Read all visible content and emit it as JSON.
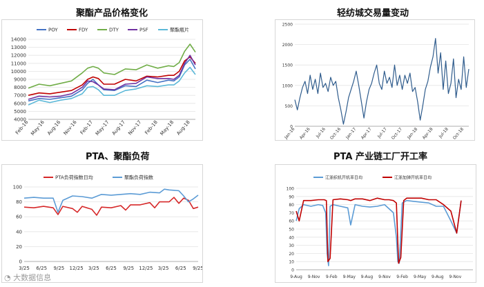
{
  "titles": {
    "top_left": "聚酯产品价格变化",
    "top_right": "轻纺城交易量变动",
    "bottom_left": "PTA、聚酯负荷",
    "bottom_right": "PTA 产业链工厂开工率"
  },
  "watermark": "大数据信息",
  "chart_data": [
    {
      "id": "polyester-prices",
      "type": "line",
      "title": "聚酯产品价格变化",
      "ylim": [
        4000,
        14000
      ],
      "yticks": [
        4000,
        5000,
        6000,
        7000,
        8000,
        9000,
        10000,
        11000,
        12000,
        13000,
        14000
      ],
      "xlim": [
        0,
        31
      ],
      "xtick_labels": [
        "Feb-16",
        "May-16",
        "Aug-16",
        "Nov-16",
        "Feb-17",
        "May-17",
        "Aug-17",
        "Nov-17",
        "Feb-18",
        "May-18",
        "Aug-18"
      ],
      "xtick_pos": [
        0,
        3,
        6,
        9,
        12,
        15,
        18,
        21,
        24,
        27,
        30
      ],
      "legend_position": "top",
      "series": [
        {
          "name": "POY",
          "color": "#4472c4",
          "x": [
            0,
            2,
            4,
            6,
            8,
            10,
            11,
            12,
            13,
            14,
            16,
            18,
            20,
            22,
            24,
            26,
            27,
            28,
            29,
            30,
            31
          ],
          "y": [
            6300,
            6600,
            6500,
            6700,
            6900,
            7700,
            8500,
            9000,
            8300,
            7700,
            7600,
            8200,
            8100,
            8900,
            8600,
            8900,
            8800,
            9300,
            10800,
            11500,
            10300
          ]
        },
        {
          "name": "FDY",
          "color": "#c00000",
          "x": [
            0,
            2,
            4,
            6,
            8,
            10,
            11,
            12,
            13,
            14,
            16,
            18,
            20,
            22,
            24,
            26,
            27,
            28,
            29,
            30,
            31
          ],
          "y": [
            7000,
            7300,
            7200,
            7400,
            7600,
            8300,
            9000,
            9300,
            9100,
            8400,
            8400,
            9000,
            8800,
            9400,
            9300,
            9500,
            9500,
            10000,
            11300,
            11800,
            11000
          ]
        },
        {
          "name": "DTY",
          "color": "#70ad47",
          "x": [
            0,
            2,
            4,
            6,
            8,
            10,
            11,
            12,
            13,
            14,
            16,
            18,
            20,
            22,
            24,
            26,
            27,
            28,
            29,
            30,
            31
          ],
          "y": [
            7900,
            8400,
            8200,
            8500,
            8800,
            9800,
            10400,
            10600,
            10400,
            9800,
            9600,
            10300,
            10200,
            10800,
            10400,
            10700,
            10600,
            11100,
            12500,
            13400,
            12400
          ]
        },
        {
          "name": "PSF",
          "color": "#7030a0",
          "x": [
            0,
            2,
            4,
            6,
            8,
            10,
            11,
            12,
            13,
            14,
            16,
            18,
            20,
            22,
            24,
            26,
            27,
            28,
            29,
            30,
            31
          ],
          "y": [
            6500,
            6900,
            6800,
            6900,
            7200,
            8000,
            8800,
            8700,
            8300,
            7800,
            7700,
            8400,
            8500,
            9300,
            9100,
            9100,
            9000,
            9500,
            11000,
            12000,
            10800
          ]
        },
        {
          "name": "聚酯瓶片",
          "color": "#5bb8d8",
          "x": [
            0,
            2,
            4,
            6,
            8,
            10,
            11,
            12,
            13,
            14,
            16,
            18,
            20,
            22,
            24,
            26,
            27,
            28,
            29,
            30,
            31
          ],
          "y": [
            5800,
            6400,
            6100,
            6400,
            6600,
            7200,
            8000,
            8100,
            7700,
            7000,
            7000,
            7600,
            7800,
            8200,
            8100,
            8300,
            8300,
            8800,
            9800,
            10500,
            9600
          ]
        }
      ]
    },
    {
      "id": "textile-city-volume",
      "type": "line",
      "title": "轻纺城交易量变动",
      "ylim": [
        0,
        2500
      ],
      "yticks": [
        0,
        500,
        1000,
        1500,
        2000,
        2500
      ],
      "xlim": [
        0,
        34
      ],
      "xtick_labels": [
        "Jan-16",
        "Apr-16",
        "Jul-16",
        "Oct-16",
        "Jan-17",
        "Apr-17",
        "Jul-17",
        "Oct-17",
        "Jan-18",
        "Apr-18",
        "Jul-18",
        "Oct-18"
      ],
      "xtick_pos": [
        0,
        3,
        6,
        9,
        12,
        15,
        18,
        21,
        24,
        27,
        30,
        33
      ],
      "legend_position": "none",
      "series": [
        {
          "name": "",
          "color": "#2e5b8c",
          "x": [
            0,
            0.5,
            1,
            1.5,
            2,
            2.5,
            3,
            3.5,
            4,
            4.5,
            5,
            5.5,
            6,
            6.5,
            7,
            7.5,
            8,
            8.5,
            9,
            9.5,
            10,
            10.5,
            11,
            11.5,
            12,
            12.5,
            13,
            13.5,
            14,
            14.5,
            15,
            15.5,
            16,
            16.5,
            17,
            17.5,
            18,
            18.5,
            19,
            19.5,
            20,
            20.5,
            21,
            21.5,
            22,
            22.5,
            23,
            23.5,
            24,
            24.5,
            25,
            25.5,
            26,
            26.5,
            27,
            27.5,
            28,
            28.5,
            29,
            29.5,
            30,
            30.5,
            31,
            31.5,
            32,
            32.5,
            33,
            33.5,
            34
          ],
          "y": [
            650,
            400,
            700,
            950,
            1100,
            800,
            1250,
            900,
            1150,
            800,
            1300,
            950,
            1050,
            850,
            1200,
            1000,
            1100,
            700,
            400,
            50,
            350,
            700,
            900,
            1100,
            1350,
            1000,
            600,
            200,
            600,
            900,
            1050,
            1300,
            1500,
            1050,
            900,
            1350,
            1050,
            1200,
            950,
            1500,
            1000,
            1250,
            900,
            1250,
            1050,
            1300,
            850,
            950,
            600,
            150,
            500,
            900,
            1100,
            1450,
            1700,
            2150,
            1300,
            1800,
            900,
            1600,
            800,
            1050,
            1650,
            700,
            1150,
            900,
            1700,
            950,
            1400
          ]
        }
      ]
    },
    {
      "id": "pta-polyester-load",
      "type": "line",
      "title": "PTA、聚酯负荷",
      "ylim": [
        0,
        100
      ],
      "yticks": [
        0,
        20,
        40,
        60,
        80,
        100
      ],
      "xlim": [
        0,
        18
      ],
      "xtick_labels": [
        "3/25",
        "6/25",
        "9/25",
        "12/25",
        "3/25",
        "6/25",
        "9/25",
        "12/25",
        "3/25",
        "6/25",
        "9/25"
      ],
      "xtick_pos": [
        0,
        1.8,
        3.6,
        5.4,
        7.2,
        9,
        10.8,
        12.6,
        14.4,
        16.2,
        18
      ],
      "legend_position": "top",
      "series": [
        {
          "name": "PTA负荷指数日均",
          "color": "#d62728",
          "x": [
            0,
            1,
            2,
            3,
            3.5,
            4,
            5,
            5.5,
            6,
            7,
            7.5,
            8,
            9,
            10,
            10.5,
            11,
            12,
            13,
            13.5,
            14,
            15,
            15.5,
            16,
            16.5,
            17,
            17.5,
            18
          ],
          "y": [
            73,
            72,
            74,
            72,
            63,
            74,
            71,
            66,
            74,
            70,
            62,
            73,
            72,
            75,
            69,
            76,
            76,
            79,
            72,
            80,
            80,
            86,
            78,
            85,
            82,
            71,
            73
          ]
        },
        {
          "name": "聚酯负荷指数",
          "color": "#5b9bd5",
          "x": [
            0,
            1,
            2,
            3,
            3.5,
            4,
            5,
            6,
            7,
            8,
            9,
            10,
            11,
            12,
            13,
            14,
            14.5,
            15,
            16,
            16.5,
            17,
            17.5,
            18
          ],
          "y": [
            85,
            86,
            85,
            85,
            66,
            82,
            88,
            87,
            85,
            90,
            89,
            90,
            91,
            90,
            93,
            92,
            97,
            96,
            95,
            88,
            80,
            84,
            89
          ]
        }
      ]
    },
    {
      "id": "pta-chain-operating-rate",
      "type": "line",
      "title": "PTA 产业链工厂开工率",
      "ylim": [
        0,
        100
      ],
      "yticks": [
        0,
        10,
        20,
        30,
        40,
        50,
        60,
        70,
        80,
        90,
        100
      ],
      "xlim": [
        0,
        12
      ],
      "xtick_labels": [
        "9-Aug",
        "9-Nov",
        "9-Feb",
        "9-May",
        "9-Aug",
        "9-Nov",
        "9-Feb",
        "9-May",
        "9-Aug",
        "9-Nov"
      ],
      "xtick_pos": [
        0,
        1.2,
        2.4,
        3.6,
        4.8,
        6,
        7.2,
        8.4,
        9.6,
        10.8
      ],
      "legend_position": "top",
      "series": [
        {
          "name": "江浙织机开机率日均",
          "color": "#5b9bd5",
          "x": [
            0,
            0.2,
            0.5,
            1,
            1.5,
            1.8,
            2,
            2.1,
            2.2,
            2.3,
            2.5,
            3,
            3.5,
            3.7,
            4,
            4.5,
            5,
            5.5,
            6,
            6.3,
            6.6,
            6.8,
            6.9,
            7,
            7.2,
            7.5,
            8,
            8.5,
            9,
            9.5,
            10,
            10.5,
            10.9,
            11.2
          ],
          "y": [
            60,
            75,
            80,
            78,
            80,
            79,
            70,
            20,
            5,
            78,
            80,
            78,
            76,
            55,
            80,
            78,
            77,
            78,
            80,
            75,
            70,
            40,
            10,
            8,
            82,
            85,
            84,
            83,
            82,
            78,
            78,
            60,
            45,
            85
          ]
        },
        {
          "name": "江浙加弹开机率日均",
          "color": "#c00000",
          "x": [
            0,
            0.2,
            0.5,
            1,
            1.5,
            1.9,
            2.05,
            2.15,
            2.3,
            2.5,
            3,
            3.5,
            3.7,
            4,
            4.5,
            5,
            5.5,
            6,
            6.3,
            6.6,
            6.8,
            6.95,
            7.1,
            7.3,
            7.5,
            8,
            8.5,
            9,
            9.5,
            10,
            10.5,
            10.9,
            11.2
          ],
          "y": [
            72,
            60,
            85,
            85,
            86,
            86,
            85,
            10,
            14,
            86,
            87,
            86,
            85,
            87,
            87,
            85,
            88,
            86,
            86,
            85,
            82,
            8,
            15,
            85,
            88,
            88,
            88,
            86,
            86,
            80,
            72,
            45,
            85
          ]
        }
      ]
    }
  ]
}
